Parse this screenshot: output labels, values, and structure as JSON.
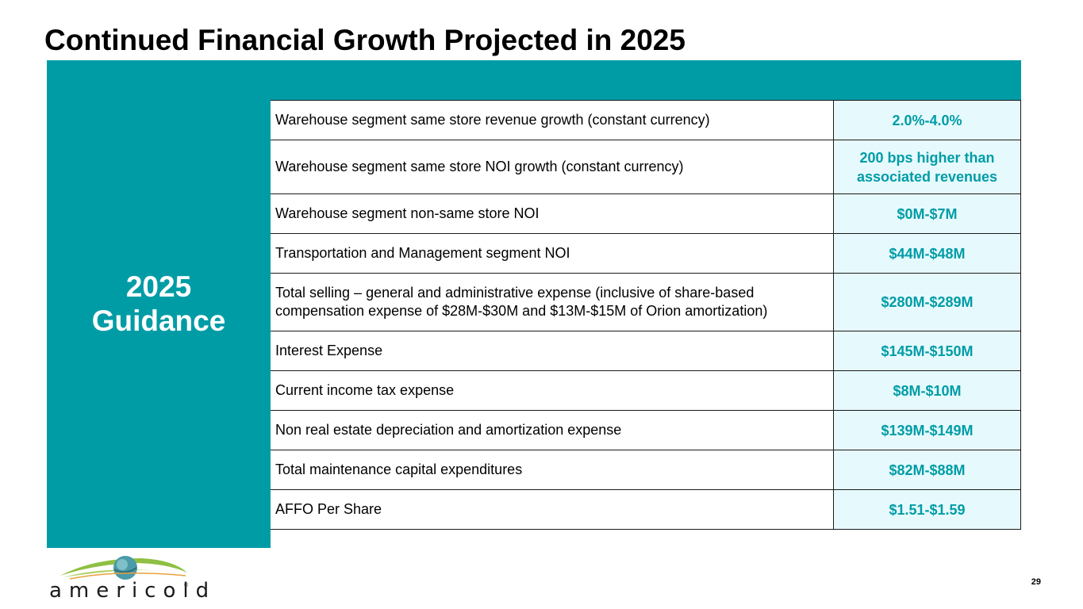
{
  "slide": {
    "title": "Continued Financial Growth Projected in 2025",
    "page_number": "29"
  },
  "guidance_panel": {
    "line1": "2025",
    "line2": "Guidance"
  },
  "guidance_table": {
    "rows": [
      {
        "label": "Warehouse segment same store revenue growth (constant currency)",
        "value": "2.0%-4.0%"
      },
      {
        "label": "Warehouse segment same store NOI growth (constant currency)",
        "value_line1": "200 bps higher than",
        "value_line2": "associated revenues"
      },
      {
        "label": "Warehouse segment non-same store NOI",
        "value": "$0M-$7M"
      },
      {
        "label": "Transportation and Management segment NOI",
        "value": "$44M-$48M"
      },
      {
        "label_line1": "Total selling – general and administrative expense (inclusive of share-based",
        "label_line2": "compensation expense of $28M-$30M and $13M-$15M of Orion amortization)",
        "value": "$280M-$289M"
      },
      {
        "label": "Interest Expense",
        "value": "$145M-$150M"
      },
      {
        "label": "Current income tax expense",
        "value": "$8M-$10M"
      },
      {
        "label": "Non real estate depreciation and amortization expense",
        "value": "$139M-$149M"
      },
      {
        "label": "Total maintenance capital expenditures",
        "value": "$82M-$88M"
      },
      {
        "label": "AFFO Per Share",
        "value": "$1.51-$1.59"
      }
    ]
  },
  "logo": {
    "text": "americold",
    "mark": "®",
    "icon": "globe-swoosh-icon"
  },
  "colors": {
    "accent_teal": "#009ca6",
    "value_cell_bg": "#e6fafd"
  }
}
